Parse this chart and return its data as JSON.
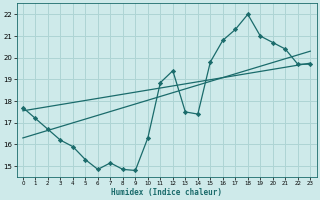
{
  "xlabel": "Humidex (Indice chaleur)",
  "ylabel": "",
  "bg_color": "#ceeaea",
  "grid_color": "#aed4d4",
  "line_color": "#1a6b6b",
  "xlim": [
    -0.5,
    23.5
  ],
  "ylim": [
    14.5,
    22.5
  ],
  "xticks": [
    0,
    1,
    2,
    3,
    4,
    5,
    6,
    7,
    8,
    9,
    10,
    11,
    12,
    13,
    14,
    15,
    16,
    17,
    18,
    19,
    20,
    21,
    22,
    23
  ],
  "yticks": [
    15,
    16,
    17,
    18,
    19,
    20,
    21,
    22
  ],
  "curve1_x": [
    0,
    1,
    2,
    3,
    4,
    5,
    6,
    7,
    8,
    9,
    10,
    11,
    12,
    13,
    14,
    15,
    16,
    17,
    18,
    19,
    20,
    21,
    22,
    23
  ],
  "curve1_y": [
    17.7,
    17.2,
    16.7,
    16.2,
    15.9,
    15.3,
    14.85,
    15.15,
    14.85,
    14.8,
    16.3,
    18.85,
    19.4,
    17.5,
    17.4,
    19.8,
    20.8,
    21.3,
    22.0,
    21.0,
    20.7,
    20.4,
    19.7,
    19.7
  ],
  "line1_x": [
    0,
    23
  ],
  "line1_y": [
    17.55,
    19.75
  ],
  "line2_x": [
    0,
    23
  ],
  "line2_y": [
    16.3,
    20.3
  ]
}
